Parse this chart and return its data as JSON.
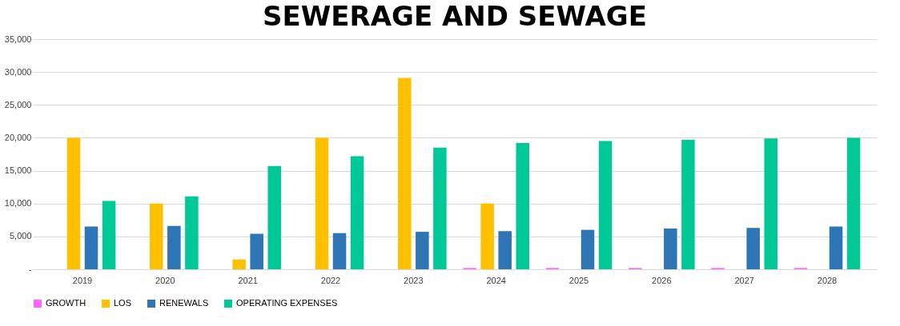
{
  "chart_data": {
    "type": "bar",
    "title": "SEWERAGE AND SEWAGE",
    "categories": [
      "2019",
      "2020",
      "2021",
      "2022",
      "2023",
      "2024",
      "2025",
      "2026",
      "2027",
      "2028"
    ],
    "series": [
      {
        "name": "GROWTH",
        "color": "#ff66ff",
        "values": [
          null,
          null,
          null,
          null,
          null,
          200,
          200,
          200,
          200,
          200
        ]
      },
      {
        "name": "LOS",
        "color": "#ffc000",
        "values": [
          20000,
          10000,
          1500,
          20000,
          29100,
          10000,
          null,
          null,
          null,
          null
        ]
      },
      {
        "name": "RENEWALS",
        "color": "#2e75b6",
        "values": [
          6500,
          6600,
          5400,
          5500,
          5700,
          5800,
          6000,
          6200,
          6300,
          6500
        ]
      },
      {
        "name": "OPERATING EXPENSES",
        "color": "#00c896",
        "values": [
          10400,
          11100,
          15700,
          17200,
          18500,
          19200,
          19500,
          19700,
          19900,
          20000
        ]
      }
    ],
    "ylim": [
      0,
      35000
    ],
    "yticks": [
      {
        "value": 0,
        "label": "-"
      },
      {
        "value": 5000,
        "label": "5,000"
      },
      {
        "value": 10000,
        "label": "10,000"
      },
      {
        "value": 15000,
        "label": "15,000"
      },
      {
        "value": 20000,
        "label": "20,000"
      },
      {
        "value": 25000,
        "label": "25,000"
      },
      {
        "value": 30000,
        "label": "30,000"
      },
      {
        "value": 35000,
        "label": "35,000"
      }
    ],
    "grid": "y",
    "legend": "bottom"
  }
}
